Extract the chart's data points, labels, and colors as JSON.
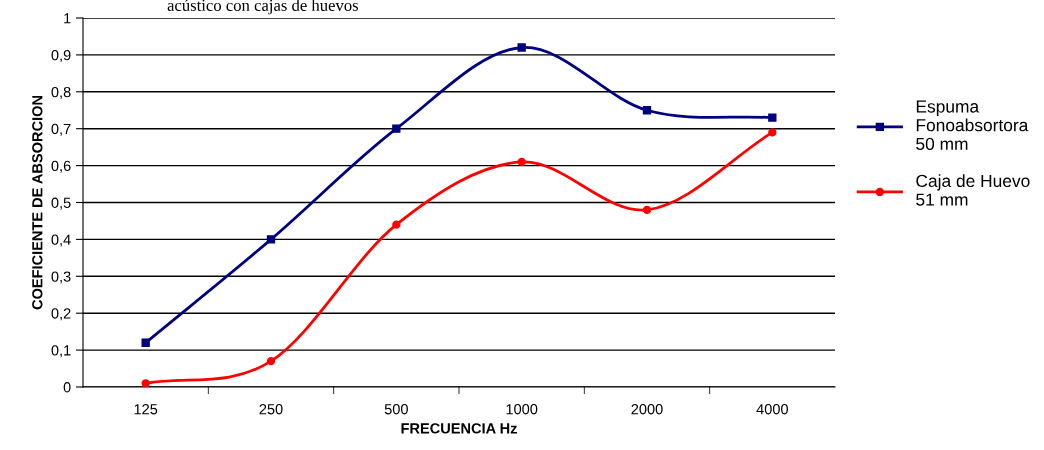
{
  "chart_data": {
    "type": "line",
    "title": "acústico con cajas de huevos",
    "xlabel": "FRECUENCIA Hz",
    "ylabel": "COEFICIENTE DE ABSORCION",
    "categories": [
      "125",
      "250",
      "500",
      "1000",
      "2000",
      "4000"
    ],
    "series": [
      {
        "name": "Espuma\nFonoabsortora\n50 mm",
        "color": "#000080",
        "marker": "square",
        "values": [
          0.12,
          0.4,
          0.7,
          0.92,
          0.75,
          0.73
        ]
      },
      {
        "name": "Caja de Huevo\n51 mm",
        "color": "#ff0000",
        "marker": "circle",
        "values": [
          0.01,
          0.07,
          0.44,
          0.61,
          0.48,
          0.69
        ]
      }
    ],
    "ylim": [
      0,
      1
    ],
    "yticks": [
      {
        "value": 0,
        "label": "0"
      },
      {
        "value": 0.1,
        "label": "0,1"
      },
      {
        "value": 0.2,
        "label": "0,2"
      },
      {
        "value": 0.3,
        "label": "0,3"
      },
      {
        "value": 0.4,
        "label": "0,4"
      },
      {
        "value": 0.5,
        "label": "0,5"
      },
      {
        "value": 0.6,
        "label": "0,6"
      },
      {
        "value": 0.7,
        "label": "0,7"
      },
      {
        "value": 0.8,
        "label": "0,8"
      },
      {
        "value": 0.9,
        "label": "0,9"
      },
      {
        "value": 1,
        "label": "1"
      }
    ],
    "grid": "y",
    "legend": "right",
    "line_style": "solid"
  }
}
